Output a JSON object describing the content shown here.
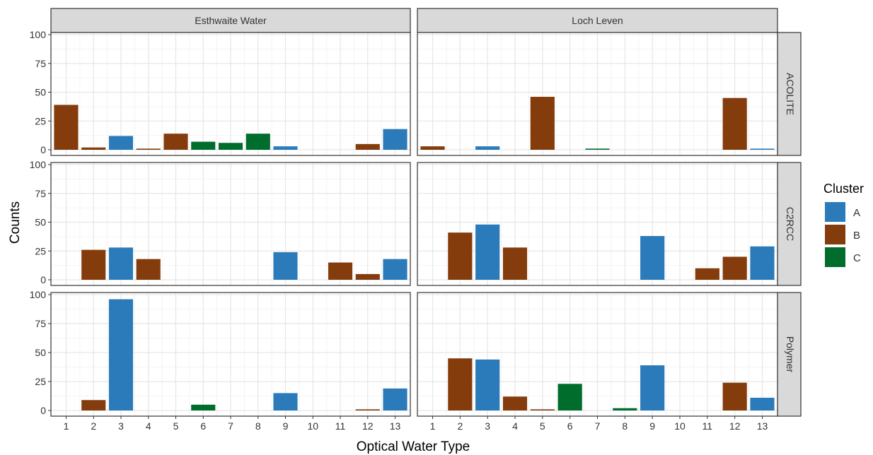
{
  "chart_data": {
    "type": "bar",
    "xlabel": "Optical Water Type",
    "ylabel": "Counts",
    "ylim": [
      0,
      100
    ],
    "yticks": [
      0,
      25,
      50,
      75,
      100
    ],
    "categories": [
      "1",
      "2",
      "3",
      "4",
      "5",
      "6",
      "7",
      "8",
      "9",
      "10",
      "11",
      "12",
      "13"
    ],
    "columns": [
      "Esthwaite Water",
      "Loch Leven"
    ],
    "rows": [
      "ACOLITE",
      "C2RCC",
      "Polymer"
    ],
    "legend": {
      "title": "Cluster",
      "position": "right",
      "entries": [
        {
          "key": "A",
          "color": "#2b7bba"
        },
        {
          "key": "B",
          "color": "#843c0c"
        },
        {
          "key": "C",
          "color": "#006d2c"
        }
      ]
    },
    "grid": true,
    "panels": [
      {
        "row": "ACOLITE",
        "col": "Esthwaite Water",
        "bars": [
          {
            "x": "1",
            "y": 39,
            "cluster": "B"
          },
          {
            "x": "2",
            "y": 2,
            "cluster": "B"
          },
          {
            "x": "3",
            "y": 12,
            "cluster": "A"
          },
          {
            "x": "4",
            "y": 1,
            "cluster": "B"
          },
          {
            "x": "5",
            "y": 14,
            "cluster": "B"
          },
          {
            "x": "6",
            "y": 7,
            "cluster": "C"
          },
          {
            "x": "7",
            "y": 6,
            "cluster": "C"
          },
          {
            "x": "8",
            "y": 14,
            "cluster": "C"
          },
          {
            "x": "9",
            "y": 3,
            "cluster": "A"
          },
          {
            "x": "12",
            "y": 5,
            "cluster": "B"
          },
          {
            "x": "13",
            "y": 18,
            "cluster": "A"
          }
        ]
      },
      {
        "row": "ACOLITE",
        "col": "Loch Leven",
        "bars": [
          {
            "x": "1",
            "y": 3,
            "cluster": "B"
          },
          {
            "x": "3",
            "y": 3,
            "cluster": "A"
          },
          {
            "x": "5",
            "y": 46,
            "cluster": "B"
          },
          {
            "x": "7",
            "y": 1,
            "cluster": "C"
          },
          {
            "x": "12",
            "y": 45,
            "cluster": "B"
          },
          {
            "x": "13",
            "y": 1,
            "cluster": "A"
          }
        ]
      },
      {
        "row": "C2RCC",
        "col": "Esthwaite Water",
        "bars": [
          {
            "x": "2",
            "y": 26,
            "cluster": "B"
          },
          {
            "x": "3",
            "y": 28,
            "cluster": "A"
          },
          {
            "x": "4",
            "y": 18,
            "cluster": "B"
          },
          {
            "x": "9",
            "y": 24,
            "cluster": "A"
          },
          {
            "x": "11",
            "y": 15,
            "cluster": "B"
          },
          {
            "x": "12",
            "y": 5,
            "cluster": "B"
          },
          {
            "x": "13",
            "y": 18,
            "cluster": "A"
          }
        ]
      },
      {
        "row": "C2RCC",
        "col": "Loch Leven",
        "bars": [
          {
            "x": "2",
            "y": 41,
            "cluster": "B"
          },
          {
            "x": "3",
            "y": 48,
            "cluster": "A"
          },
          {
            "x": "4",
            "y": 28,
            "cluster": "B"
          },
          {
            "x": "9",
            "y": 38,
            "cluster": "A"
          },
          {
            "x": "11",
            "y": 10,
            "cluster": "B"
          },
          {
            "x": "12",
            "y": 20,
            "cluster": "B"
          },
          {
            "x": "13",
            "y": 29,
            "cluster": "A"
          }
        ]
      },
      {
        "row": "Polymer",
        "col": "Esthwaite Water",
        "bars": [
          {
            "x": "2",
            "y": 9,
            "cluster": "B"
          },
          {
            "x": "3",
            "y": 96,
            "cluster": "A"
          },
          {
            "x": "6",
            "y": 5,
            "cluster": "C"
          },
          {
            "x": "9",
            "y": 15,
            "cluster": "A"
          },
          {
            "x": "12",
            "y": 1,
            "cluster": "B"
          },
          {
            "x": "13",
            "y": 19,
            "cluster": "A"
          }
        ]
      },
      {
        "row": "Polymer",
        "col": "Loch Leven",
        "bars": [
          {
            "x": "2",
            "y": 45,
            "cluster": "B"
          },
          {
            "x": "3",
            "y": 44,
            "cluster": "A"
          },
          {
            "x": "4",
            "y": 12,
            "cluster": "B"
          },
          {
            "x": "5",
            "y": 1,
            "cluster": "B"
          },
          {
            "x": "6",
            "y": 23,
            "cluster": "C"
          },
          {
            "x": "8",
            "y": 2,
            "cluster": "C"
          },
          {
            "x": "9",
            "y": 39,
            "cluster": "A"
          },
          {
            "x": "12",
            "y": 24,
            "cluster": "B"
          },
          {
            "x": "13",
            "y": 11,
            "cluster": "A"
          }
        ]
      }
    ]
  }
}
